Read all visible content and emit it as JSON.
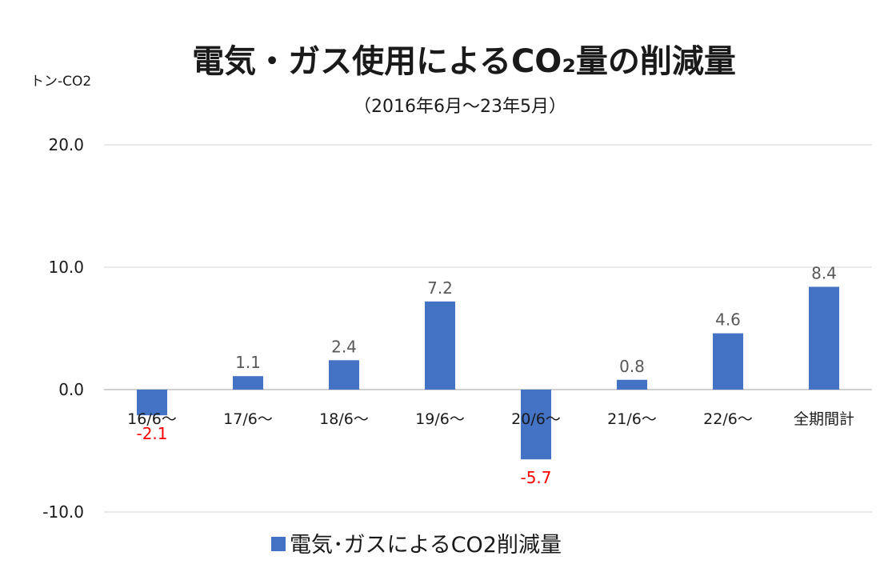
{
  "chart_data": {
    "type": "bar",
    "title": "電気・ガス使用によるCO₂量の削減量",
    "subtitle": "（2016年6月～23年5月）",
    "ylabel": "トン-CO2",
    "ylim": [
      -10,
      20
    ],
    "yticks": [
      "20.0",
      "10.0",
      "0.0",
      "-10.0"
    ],
    "categories": [
      "16/6～",
      "17/6～",
      "18/6～",
      "19/6～",
      "20/6～",
      "21/6～",
      "22/6～",
      "全期間計"
    ],
    "series": [
      {
        "name": "電気･ガスによるCO2削減量",
        "color": "#4472c4",
        "values": [
          -2.1,
          1.1,
          2.4,
          7.2,
          -5.7,
          0.8,
          4.6,
          8.4
        ]
      }
    ],
    "data_labels": [
      "-2.1",
      "1.1",
      "2.4",
      "7.2",
      "-5.7",
      "0.8",
      "4.6",
      "8.4"
    ],
    "negative_label_color": "#ff0000",
    "positive_label_color": "#595959",
    "grid": true,
    "legend_position": "bottom"
  }
}
